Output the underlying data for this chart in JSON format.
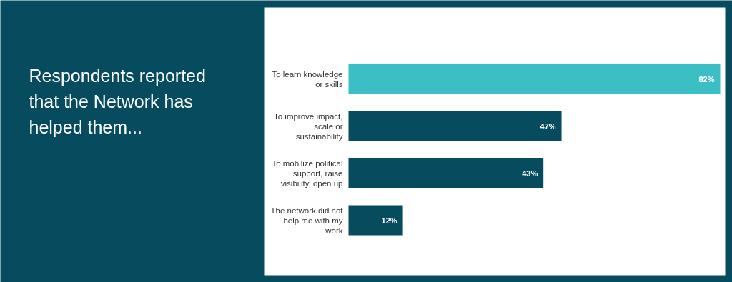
{
  "chart_data": {
    "type": "bar",
    "orientation": "horizontal",
    "title": "Respondents reported that the Network has helped them...",
    "categories": [
      "To learn knowledge\nor skills",
      "To improve impact,\nscale or\nsustainability",
      "To mobilize political\nsupport, raise\nvisibility, open up",
      "The network did not\nhelp me with my\nwork"
    ],
    "values": [
      82,
      47,
      43,
      12
    ],
    "colors": [
      "#3bbfc5",
      "#074b5f",
      "#074b5f",
      "#074b5f"
    ],
    "value_labels": [
      "82%",
      "47%",
      "43%",
      "12%"
    ]
  }
}
